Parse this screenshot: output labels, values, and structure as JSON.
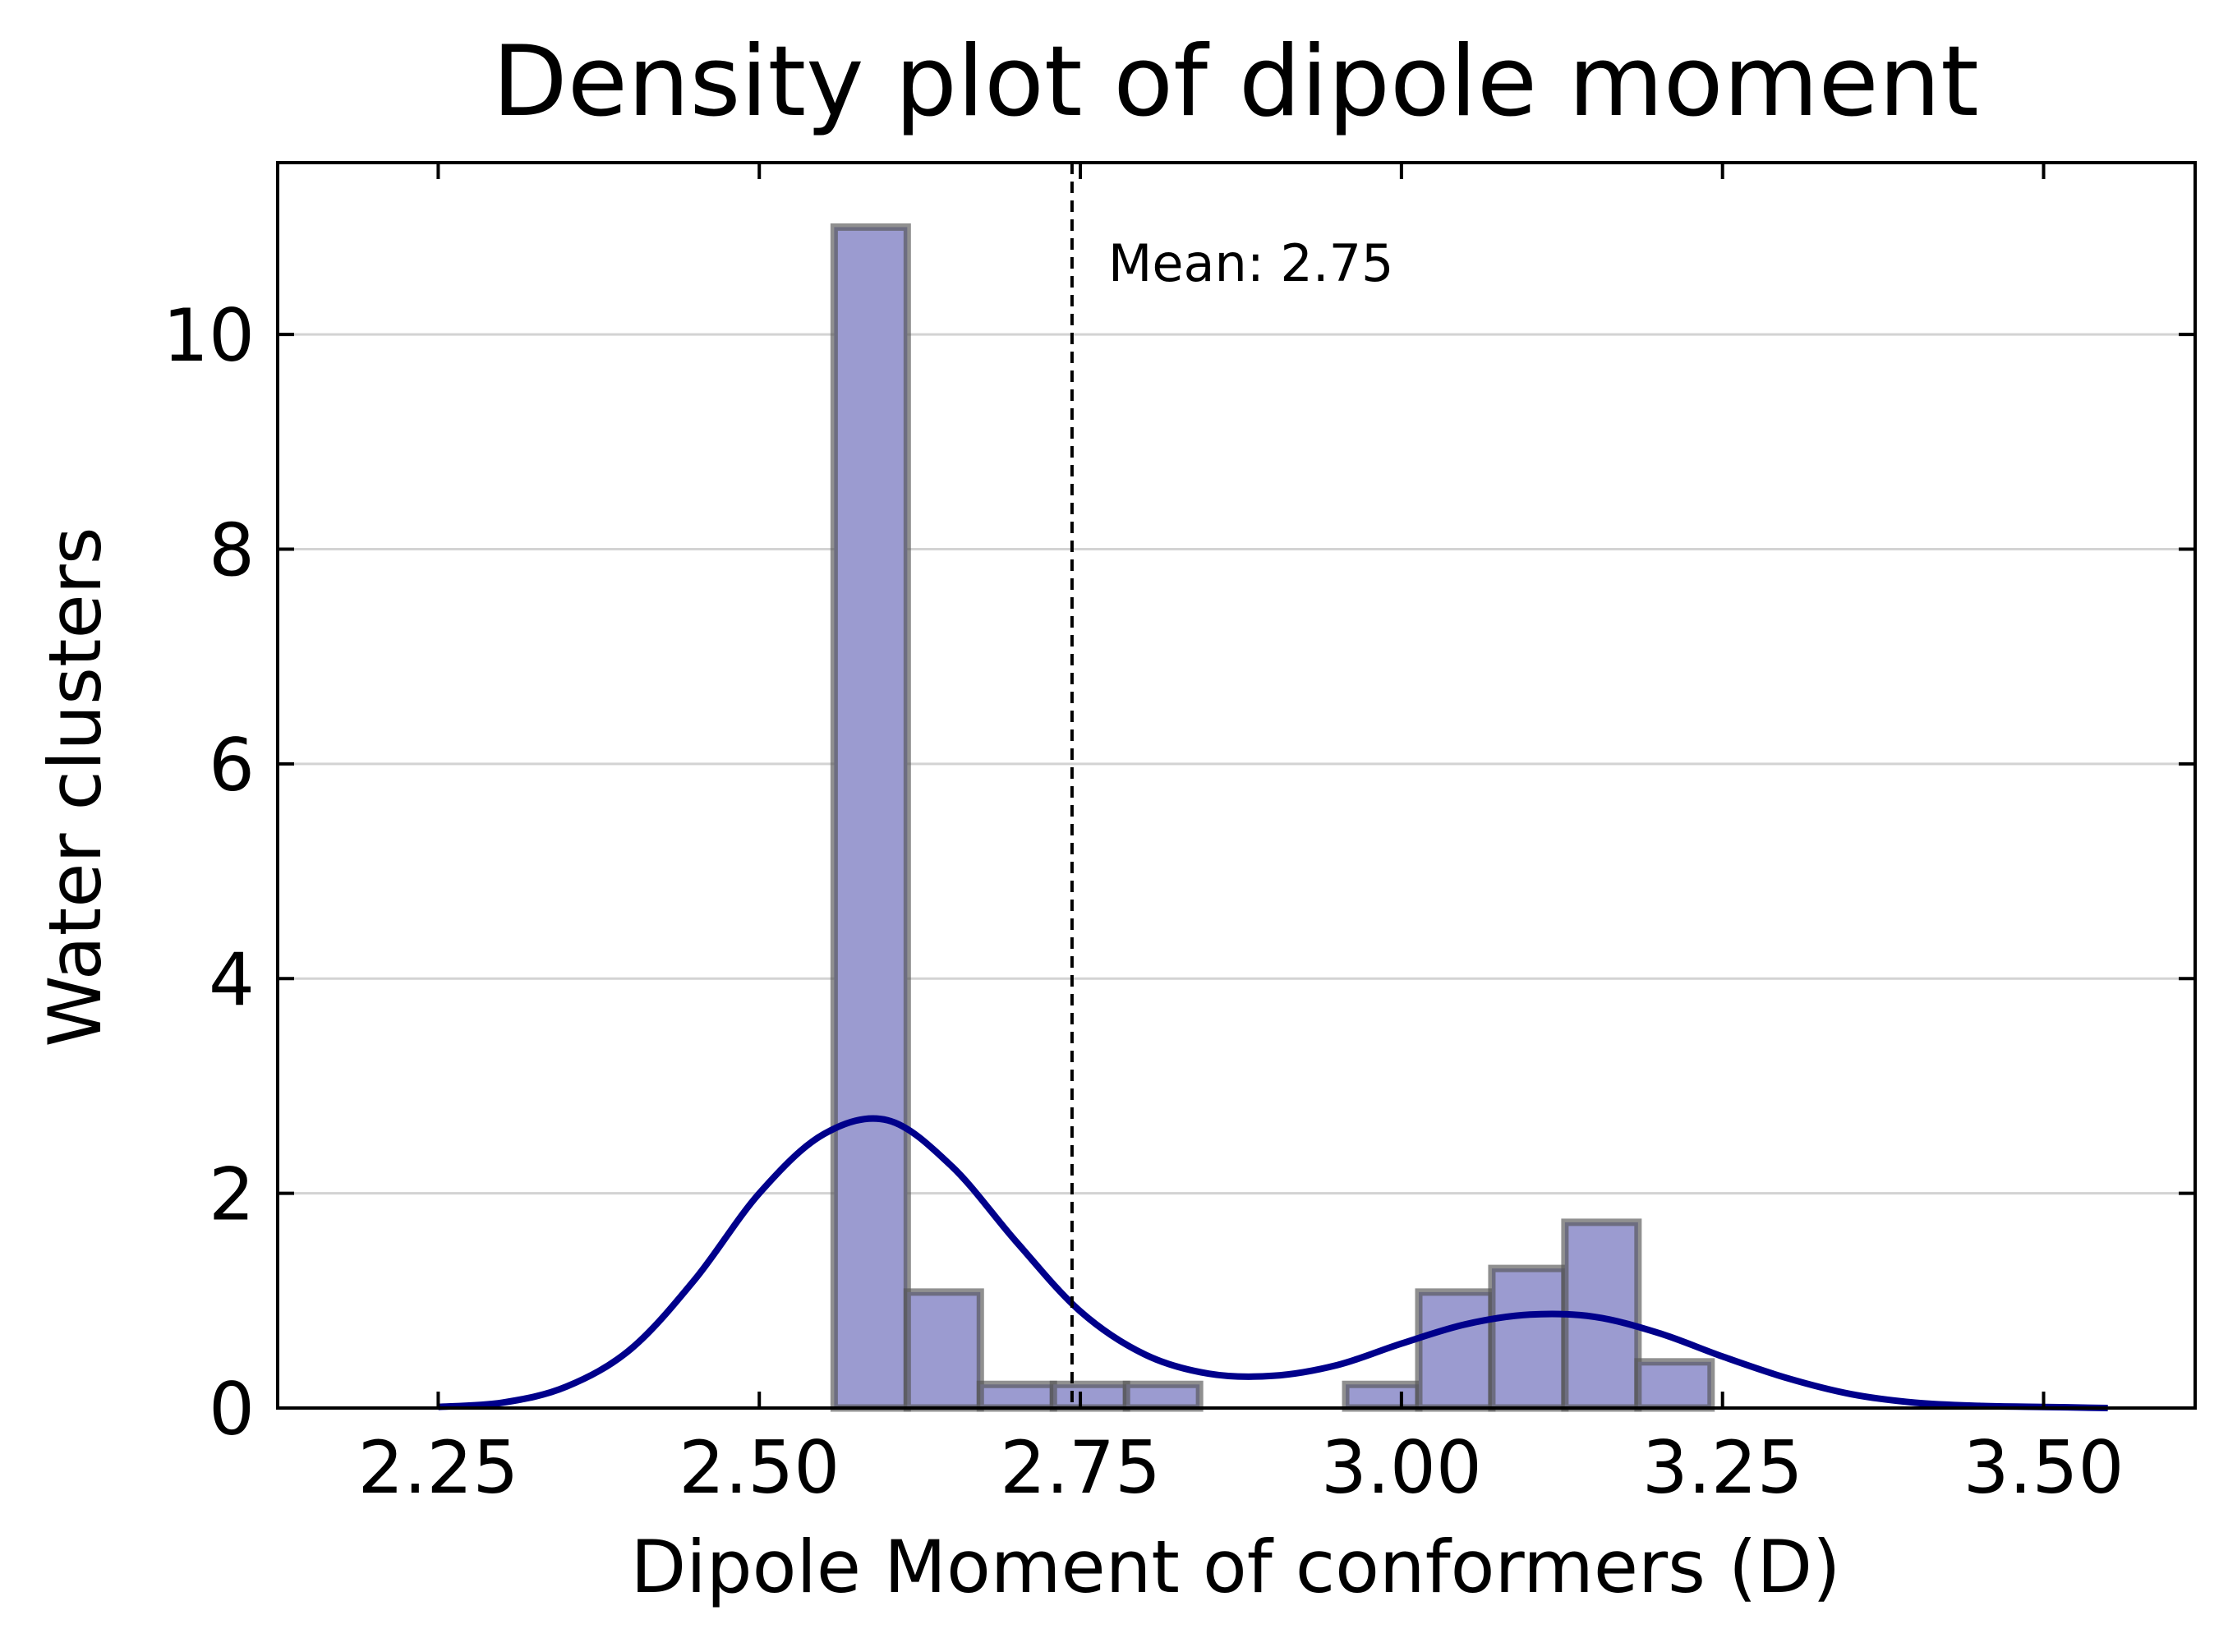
{
  "chart_data": {
    "type": "bar",
    "title": "Density plot of dipole moment",
    "xlabel": "Dipole Moment of conformers (D)",
    "ylabel": "Water clusters",
    "xlim": [
      2.125,
      3.618
    ],
    "ylim": [
      0,
      11.6
    ],
    "grid": "horizontal",
    "xticks": [
      2.25,
      2.5,
      2.75,
      3.0,
      3.25,
      3.5
    ],
    "xtick_labels": [
      "2.25",
      "2.50",
      "2.75",
      "3.00",
      "3.25",
      "3.50"
    ],
    "yticks": [
      0,
      2,
      4,
      6,
      8,
      10
    ],
    "ytick_labels": [
      "0",
      "2",
      "4",
      "6",
      "8",
      "10"
    ],
    "histogram": {
      "bin_width": 0.0569,
      "bin_edges": [
        2.5583,
        2.6152,
        2.6721,
        2.729,
        2.7859,
        2.8428,
        2.8997,
        2.9566,
        3.0135,
        3.0704,
        3.1273,
        3.1842,
        3.2411
      ],
      "values": [
        11.0,
        1.08,
        0.22,
        0.22,
        0.22,
        0,
        0,
        0.22,
        1.08,
        1.3,
        1.73,
        0.43
      ],
      "fill_color": "#9b9bd0",
      "edge_color": "#555555"
    },
    "kde": {
      "color": "#00008b",
      "x": [
        2.25,
        2.3,
        2.35,
        2.4,
        2.45,
        2.5,
        2.55,
        2.6,
        2.65,
        2.7,
        2.75,
        2.8,
        2.85,
        2.9,
        2.95,
        3.0,
        3.05,
        3.1,
        3.15,
        3.2,
        3.25,
        3.3,
        3.35,
        3.4,
        3.45,
        3.5,
        3.55
      ],
      "y": [
        0.01,
        0.05,
        0.2,
        0.55,
        1.2,
        2.0,
        2.55,
        2.68,
        2.25,
        1.55,
        0.9,
        0.5,
        0.32,
        0.3,
        0.4,
        0.6,
        0.78,
        0.87,
        0.85,
        0.7,
        0.48,
        0.28,
        0.13,
        0.05,
        0.02,
        0.01,
        0.0
      ]
    },
    "mean_line": {
      "x": 2.7435,
      "label": "Mean: 2.75",
      "style": "dashed",
      "color": "#000000"
    }
  }
}
